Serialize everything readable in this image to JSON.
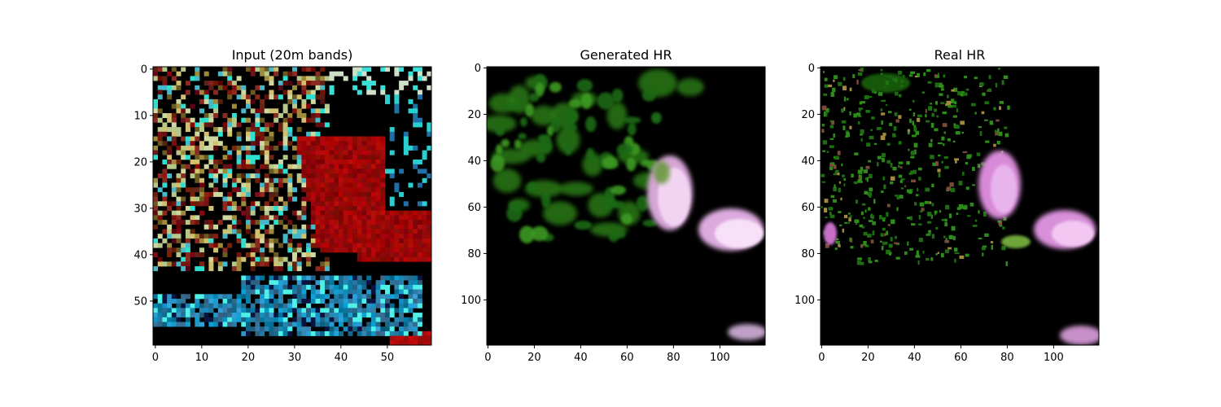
{
  "panels": [
    {
      "title": "Input (20m bands)",
      "extent": 60,
      "xticks": [
        0,
        10,
        20,
        30,
        40,
        50
      ],
      "yticks": [
        0,
        10,
        20,
        30,
        40,
        50
      ],
      "palette": "input"
    },
    {
      "title": "Generated HR",
      "extent": 120,
      "xticks": [
        0,
        20,
        40,
        60,
        80,
        100
      ],
      "yticks": [
        0,
        20,
        40,
        60,
        80,
        100
      ],
      "palette": "generated"
    },
    {
      "title": "Real HR",
      "extent": 120,
      "xticks": [
        0,
        20,
        40,
        60,
        80,
        100
      ],
      "yticks": [
        0,
        20,
        40,
        60,
        80,
        100
      ],
      "palette": "real"
    }
  ],
  "colors": {
    "background": "#000000",
    "red_patch": "#b01010",
    "cyan_patch": "#3fa6c8",
    "vegetation_green": "#1e7a12",
    "cloud_pink": "#e8b0e8"
  }
}
